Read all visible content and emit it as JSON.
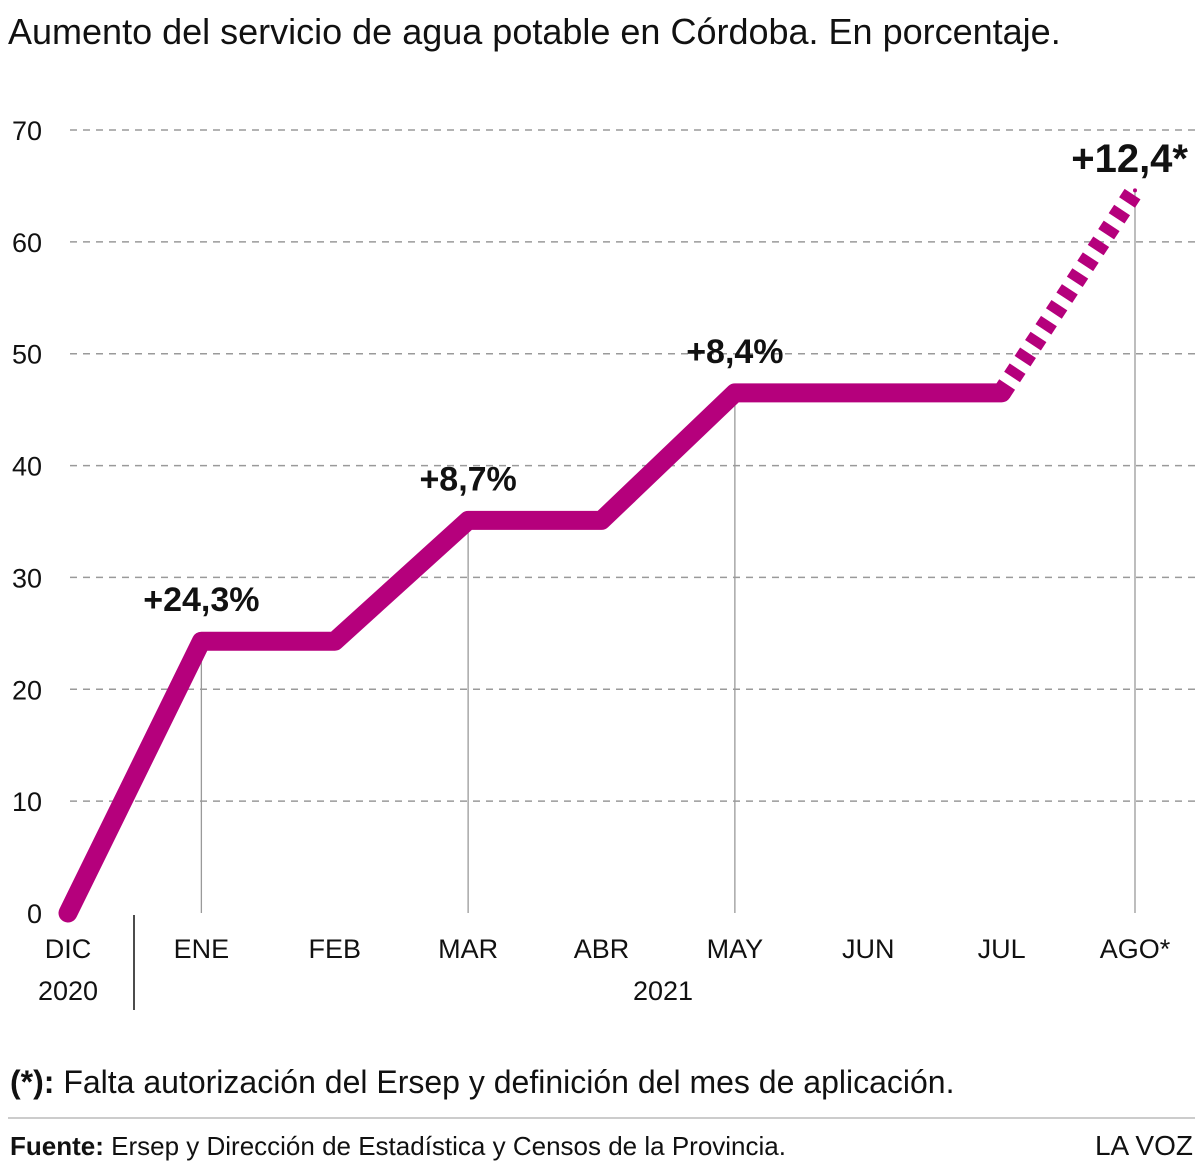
{
  "chart_data": {
    "type": "line",
    "title": "Aumento del servicio de agua potable en Córdoba. En porcentaje.",
    "categories": [
      "DIC",
      "ENE",
      "FEB",
      "MAR",
      "ABR",
      "MAY",
      "JUN",
      "JUL",
      "AGO*"
    ],
    "year_labels": {
      "first": "2020",
      "rest": "2021"
    },
    "series": [
      {
        "values": [
          0,
          24.3,
          24.3,
          35.1,
          35.1,
          46.5,
          46.5,
          46.5,
          64.6
        ],
        "projected_from_index": 7,
        "color": "#b5007c"
      }
    ],
    "ylim": [
      0,
      70
    ],
    "yticks": [
      "0",
      "10",
      "20",
      "30",
      "40",
      "50",
      "60",
      "70"
    ],
    "grid": true,
    "annotations": [
      {
        "label": "+24,3%",
        "index": 1
      },
      {
        "label": "+8,7%",
        "index": 3
      },
      {
        "label": "+8,4%",
        "index": 5
      },
      {
        "label": "+12,4*",
        "index": 8
      }
    ]
  },
  "footnote": {
    "marker": "(*):",
    "text": " Falta autorización del Ersep y definición del mes de aplicación."
  },
  "source": {
    "label": "Fuente:",
    "text": " Ersep y Dirección de Estadística y Censos de la Provincia."
  },
  "brand": "LA VOZ"
}
